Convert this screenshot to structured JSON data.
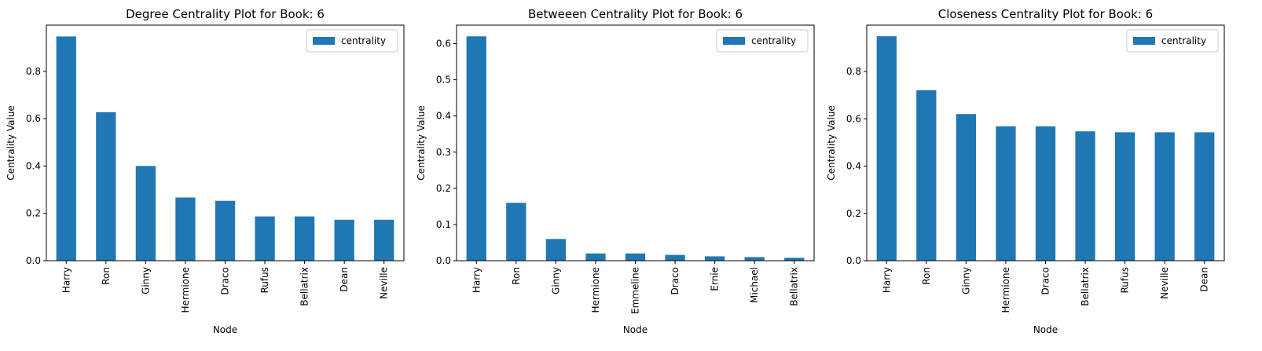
{
  "chart_data": [
    {
      "type": "bar",
      "title": "Degree Centrality Plot for Book: 6",
      "xlabel": "Node",
      "ylabel": "Centrality Value",
      "categories": [
        "Harry",
        "Ron",
        "Ginny",
        "Hermione",
        "Draco",
        "Rufus",
        "Bellatrix",
        "Dean",
        "Neville"
      ],
      "series": [
        {
          "name": "centrality",
          "values": [
            0.947,
            0.627,
            0.4,
            0.267,
            0.253,
            0.187,
            0.187,
            0.173,
            0.173
          ]
        }
      ],
      "ylim": [
        0,
        0.995
      ],
      "yticks": [
        0.0,
        0.2,
        0.4,
        0.6,
        0.8
      ],
      "legend": "top-right",
      "grid": false
    },
    {
      "type": "bar",
      "title": "Betweeen Centrality Plot for Book: 6",
      "xlabel": "Node",
      "ylabel": "Centrality Value",
      "categories": [
        "Harry",
        "Ron",
        "Ginny",
        "Hermione",
        "Emmeline",
        "Draco",
        "Ernie",
        "Michael",
        "Bellatrix"
      ],
      "series": [
        {
          "name": "centrality",
          "values": [
            0.62,
            0.16,
            0.06,
            0.02,
            0.02,
            0.016,
            0.012,
            0.01,
            0.008
          ]
        }
      ],
      "ylim": [
        0,
        0.651
      ],
      "yticks": [
        0.0,
        0.1,
        0.2,
        0.3,
        0.4,
        0.5,
        0.6
      ],
      "legend": "top-right",
      "grid": false
    },
    {
      "type": "bar",
      "title": "Closeness Centrality Plot for Book: 6",
      "xlabel": "Node",
      "ylabel": "Centrality Value",
      "categories": [
        "Harry",
        "Ron",
        "Ginny",
        "Hermione",
        "Draco",
        "Bellatrix",
        "Rufus",
        "Neville",
        "Dean"
      ],
      "series": [
        {
          "name": "centrality",
          "values": [
            0.949,
            0.721,
            0.62,
            0.568,
            0.568,
            0.547,
            0.543,
            0.543,
            0.543
          ]
        }
      ],
      "ylim": [
        0,
        0.996
      ],
      "yticks": [
        0.0,
        0.2,
        0.4,
        0.6,
        0.8
      ],
      "legend": "top-right",
      "grid": false
    }
  ],
  "colors": {
    "bar": "#1f77b4",
    "axis": "#000000",
    "legend_border": "#cccccc"
  }
}
